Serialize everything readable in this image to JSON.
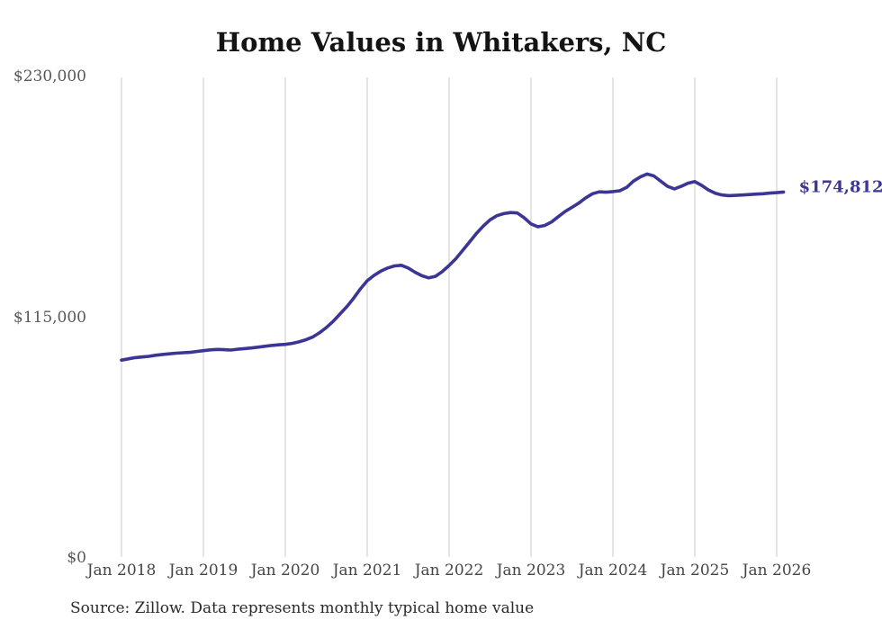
{
  "chart_title": "Home Values in Whitakers, NC",
  "source_note": "Source: Zillow. Data represents monthly typical home value",
  "chart_data": {
    "type": "line",
    "title": "Home Values in Whitakers, NC",
    "series_name": "Typical home value",
    "unit": "USD",
    "frequency": "monthly",
    "values_start": "2018-01",
    "values_end": "2026-02",
    "x_tick_labels": [
      "Jan 2018",
      "Jan 2019",
      "Jan 2020",
      "Jan 2021",
      "Jan 2022",
      "Jan 2023",
      "Jan 2024",
      "Jan 2025",
      "Jan 2026"
    ],
    "y_ticks": [
      {
        "label": "$0",
        "value": 0
      },
      {
        "label": "$115,000",
        "value": 115000
      },
      {
        "label": "$230,000",
        "value": 230000
      }
    ],
    "ylim": [
      0,
      230000
    ],
    "grid": "vertical-only",
    "legend": "none",
    "latest_value": 174812,
    "latest_value_label": "$174,812",
    "values": [
      94500,
      95100,
      95700,
      96000,
      96300,
      96800,
      97200,
      97500,
      97800,
      98000,
      98200,
      98600,
      99000,
      99400,
      99600,
      99500,
      99300,
      99700,
      100000,
      100300,
      100700,
      101100,
      101500,
      101800,
      102000,
      102500,
      103200,
      104200,
      105500,
      107500,
      110000,
      113000,
      116500,
      120000,
      124000,
      128500,
      132400,
      135000,
      137000,
      138500,
      139500,
      139800,
      138500,
      136500,
      134800,
      133800,
      134500,
      136800,
      139700,
      143000,
      147000,
      151000,
      155000,
      158500,
      161500,
      163500,
      164500,
      165000,
      164800,
      162500,
      159600,
      158200,
      158800,
      160500,
      163000,
      165500,
      167500,
      169500,
      172000,
      174000,
      174900,
      174700,
      175000,
      175400,
      177000,
      180000,
      182000,
      183400,
      182500,
      180000,
      177500,
      176300,
      177500,
      179000,
      179800,
      178000,
      175800,
      174200,
      173400,
      173100,
      173200,
      173400,
      173600,
      173800,
      174000,
      174300,
      174500,
      174812
    ],
    "colors": {
      "line": "#3b3596",
      "latest_label": "#3b3596",
      "title": "#141414",
      "grid": "#cbcbcb",
      "y_axis_label": "#58585a",
      "x_axis_label": "#454545",
      "source": "#2b2b2b",
      "background": "#ffffff"
    }
  }
}
